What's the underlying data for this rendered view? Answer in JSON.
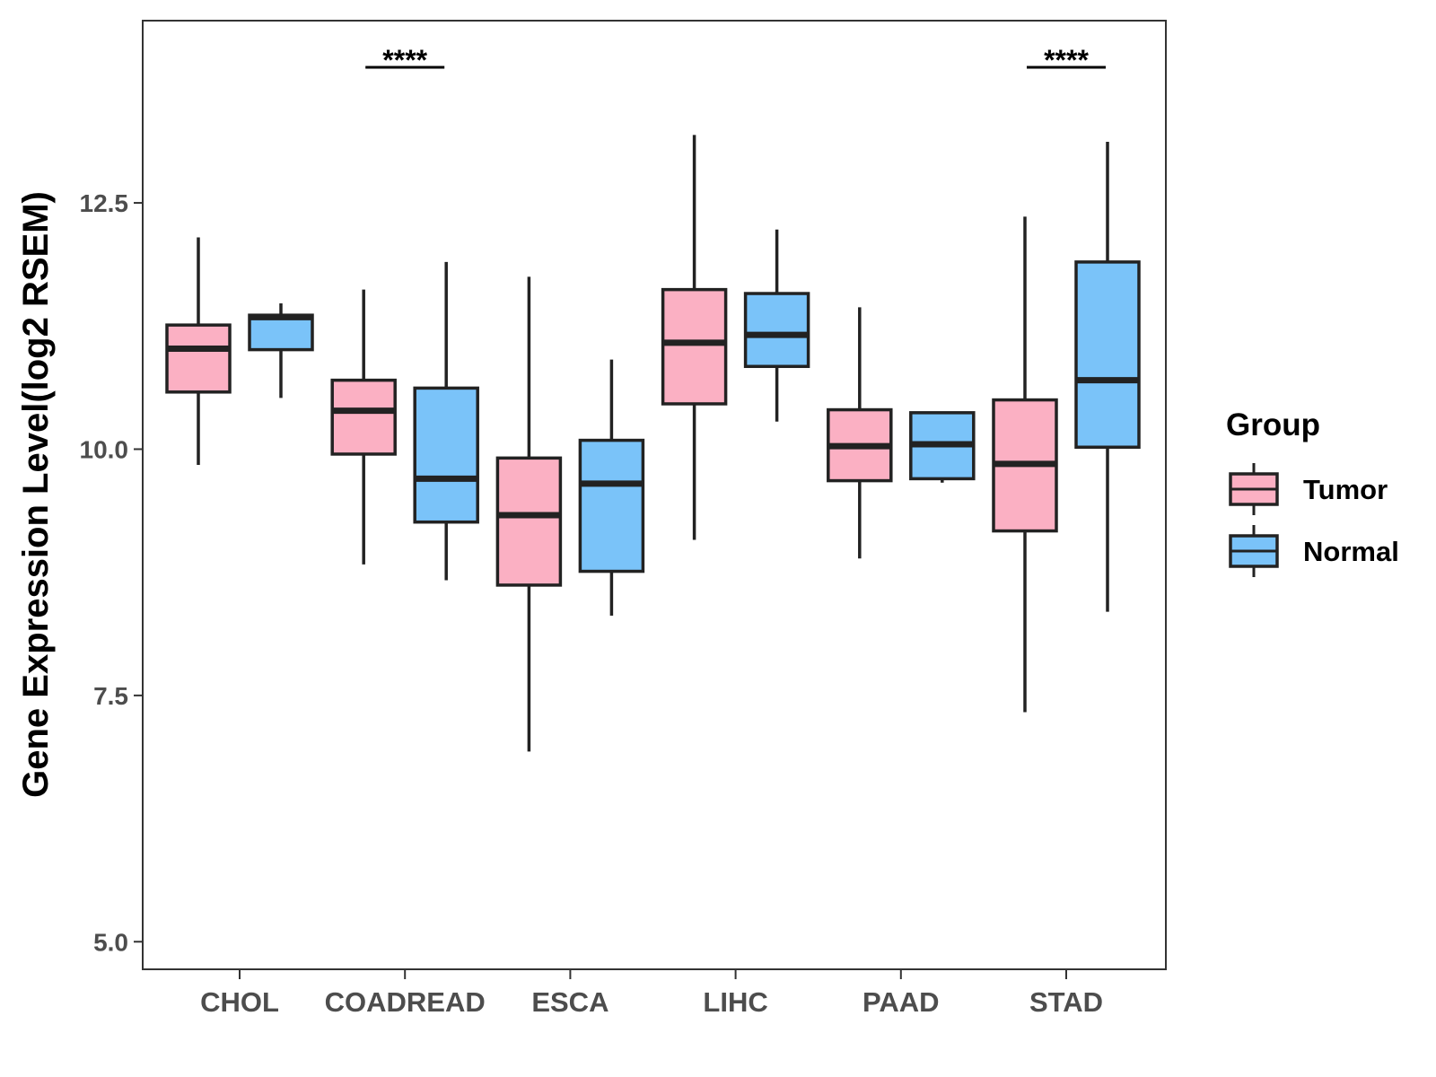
{
  "chart_data": {
    "type": "box",
    "title": "",
    "xlabel": "",
    "ylabel": "Gene Expression Level(log2 RSEM)",
    "ylim": [
      4.72,
      14.35
    ],
    "yticks": [
      5.0,
      7.5,
      10.0,
      12.5
    ],
    "ytick_labels": [
      "5.0",
      "7.5",
      "10.0",
      "12.5"
    ],
    "categories": [
      "CHOL",
      "COADREAD",
      "ESCA",
      "LIHC",
      "PAAD",
      "STAD"
    ],
    "legend": {
      "title": "Group",
      "position": "right",
      "entries": [
        {
          "name": "Tumor",
          "color": "#fbb0c3"
        },
        {
          "name": "Normal",
          "color": "#7ac3f9"
        }
      ]
    },
    "series": [
      {
        "name": "Tumor",
        "color": "#fbb0c3",
        "boxes": [
          {
            "category": "CHOL",
            "min": 9.84,
            "q1": 10.58,
            "median": 11.02,
            "q3": 11.26,
            "max": 12.15
          },
          {
            "category": "COADREAD",
            "min": 8.83,
            "q1": 9.95,
            "median": 10.39,
            "q3": 10.7,
            "max": 11.62
          },
          {
            "category": "ESCA",
            "min": 6.93,
            "q1": 8.62,
            "median": 9.33,
            "q3": 9.91,
            "max": 11.75
          },
          {
            "category": "LIHC",
            "min": 9.08,
            "q1": 10.46,
            "median": 11.08,
            "q3": 11.62,
            "max": 13.19
          },
          {
            "category": "PAAD",
            "min": 8.89,
            "q1": 9.68,
            "median": 10.03,
            "q3": 10.4,
            "max": 11.44
          },
          {
            "category": "STAD",
            "min": 7.33,
            "q1": 9.17,
            "median": 9.85,
            "q3": 10.5,
            "max": 12.36
          }
        ]
      },
      {
        "name": "Normal",
        "color": "#7ac3f9",
        "boxes": [
          {
            "category": "CHOL",
            "min": 10.52,
            "q1": 11.01,
            "median": 11.34,
            "q3": 11.36,
            "max": 11.48
          },
          {
            "category": "COADREAD",
            "min": 8.67,
            "q1": 9.26,
            "median": 9.7,
            "q3": 10.62,
            "max": 11.9
          },
          {
            "category": "ESCA",
            "min": 8.31,
            "q1": 8.76,
            "median": 9.65,
            "q3": 10.09,
            "max": 10.91
          },
          {
            "category": "LIHC",
            "min": 10.28,
            "q1": 10.84,
            "median": 11.16,
            "q3": 11.58,
            "max": 12.23
          },
          {
            "category": "PAAD",
            "min": 9.66,
            "q1": 9.7,
            "median": 10.05,
            "q3": 10.37,
            "max": 10.37
          },
          {
            "category": "STAD",
            "min": 8.35,
            "q1": 10.02,
            "median": 10.7,
            "q3": 11.9,
            "max": 13.12
          }
        ]
      }
    ],
    "significance": [
      {
        "category": "COADREAD",
        "label": "****"
      },
      {
        "category": "STAD",
        "label": "****"
      }
    ]
  }
}
